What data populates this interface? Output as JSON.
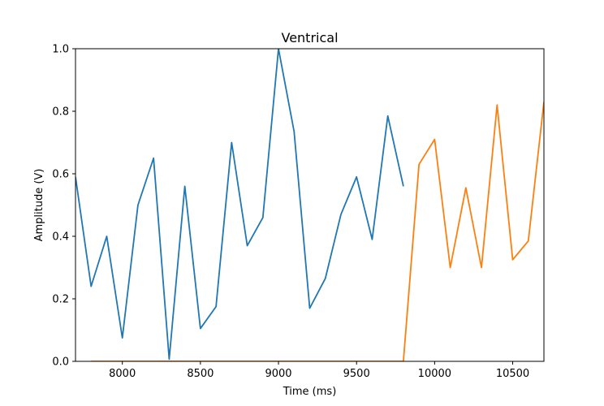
{
  "chart_data": {
    "type": "line",
    "title": "Ventrical",
    "xlabel": "Time (ms)",
    "ylabel": "Amplitude (V)",
    "xlim": [
      7700,
      10700
    ],
    "ylim": [
      0.0,
      1.0
    ],
    "xticks": [
      8000,
      8500,
      9000,
      9500,
      10000,
      10500
    ],
    "yticks": [
      0.0,
      0.2,
      0.4,
      0.6,
      0.8,
      1.0
    ],
    "ytick_labels": [
      "0.0",
      "0.2",
      "0.4",
      "0.6",
      "0.8",
      "1.0"
    ],
    "grid": false,
    "series": [
      {
        "color": "#1f77b4",
        "x": [
          7700,
          7800,
          7900,
          8000,
          8100,
          8200,
          8300,
          8400,
          8500,
          8600,
          8700,
          8800,
          8900,
          9000,
          9100,
          9200,
          9300,
          9400,
          9500,
          9600,
          9700,
          9800
        ],
        "y": [
          0.59,
          0.24,
          0.4,
          0.075,
          0.5,
          0.65,
          0.007,
          0.56,
          0.105,
          0.175,
          0.7,
          0.37,
          0.46,
          1.0,
          0.735,
          0.17,
          0.265,
          0.47,
          0.59,
          0.39,
          0.785,
          0.56
        ]
      },
      {
        "color": "#ff7f0e",
        "x": [
          7800,
          9800,
          9900,
          10000,
          10100,
          10200,
          10300,
          10400,
          10500,
          10600,
          10700
        ],
        "y": [
          0.0,
          0.0,
          0.63,
          0.71,
          0.3,
          0.555,
          0.3,
          0.82,
          0.325,
          0.385,
          0.83
        ]
      }
    ]
  }
}
